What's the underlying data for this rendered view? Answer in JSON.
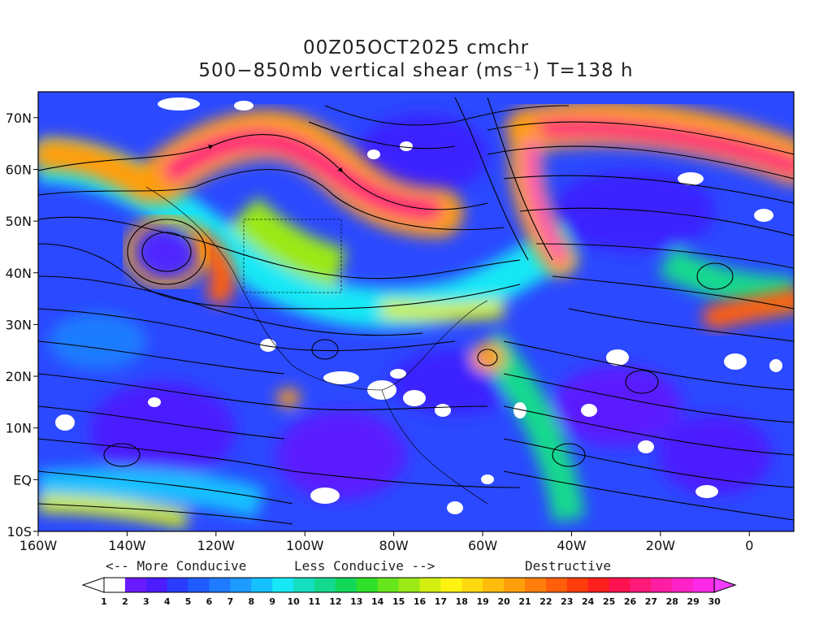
{
  "title": {
    "line1": "00Z05OCT2025 cmchr",
    "line2": "500−850mb vertical shear (ms⁻¹) T=138 h"
  },
  "axes": {
    "lat_labels": [
      "70N",
      "60N",
      "50N",
      "40N",
      "30N",
      "20N",
      "10N",
      "EQ",
      "10S"
    ],
    "lat_values": [
      70,
      60,
      50,
      40,
      30,
      20,
      10,
      0,
      -10
    ],
    "lon_labels": [
      "160W",
      "140W",
      "120W",
      "100W",
      "80W",
      "60W",
      "40W",
      "20W",
      "0"
    ],
    "lon_values": [
      -160,
      -140,
      -120,
      -100,
      -80,
      -60,
      -40,
      -20,
      0
    ],
    "lon_range": [
      -160,
      10
    ],
    "lat_range": [
      -10,
      75
    ]
  },
  "legend": {
    "more_conducive": "<-- More Conducive",
    "less_conducive": "Less Conducive -->",
    "destructive": "Destructive",
    "levels": [
      "1",
      "2",
      "3",
      "4",
      "5",
      "6",
      "7",
      "8",
      "9",
      "10",
      "11",
      "12",
      "13",
      "14",
      "15",
      "16",
      "17",
      "18",
      "19",
      "20",
      "21",
      "22",
      "23",
      "24",
      "25",
      "26",
      "27",
      "28",
      "29",
      "30"
    ],
    "colors": [
      "#ffffff",
      "#6a1aff",
      "#4b1cff",
      "#2a3dff",
      "#1f5cff",
      "#1e7bff",
      "#1d9bff",
      "#15c0ff",
      "#17e8f5",
      "#16dec0",
      "#13d98e",
      "#12d85a",
      "#2fe02a",
      "#67e61d",
      "#9be917",
      "#d3ef12",
      "#fff312",
      "#ffd90f",
      "#ffbc0c",
      "#ff9e0b",
      "#ff7f0a",
      "#ff5f0a",
      "#ff3d0b",
      "#ff1f1f",
      "#ff1250",
      "#ff1a7a",
      "#ff1ea3",
      "#ff22c8",
      "#ff2ae8",
      "#f23cff"
    ]
  }
}
